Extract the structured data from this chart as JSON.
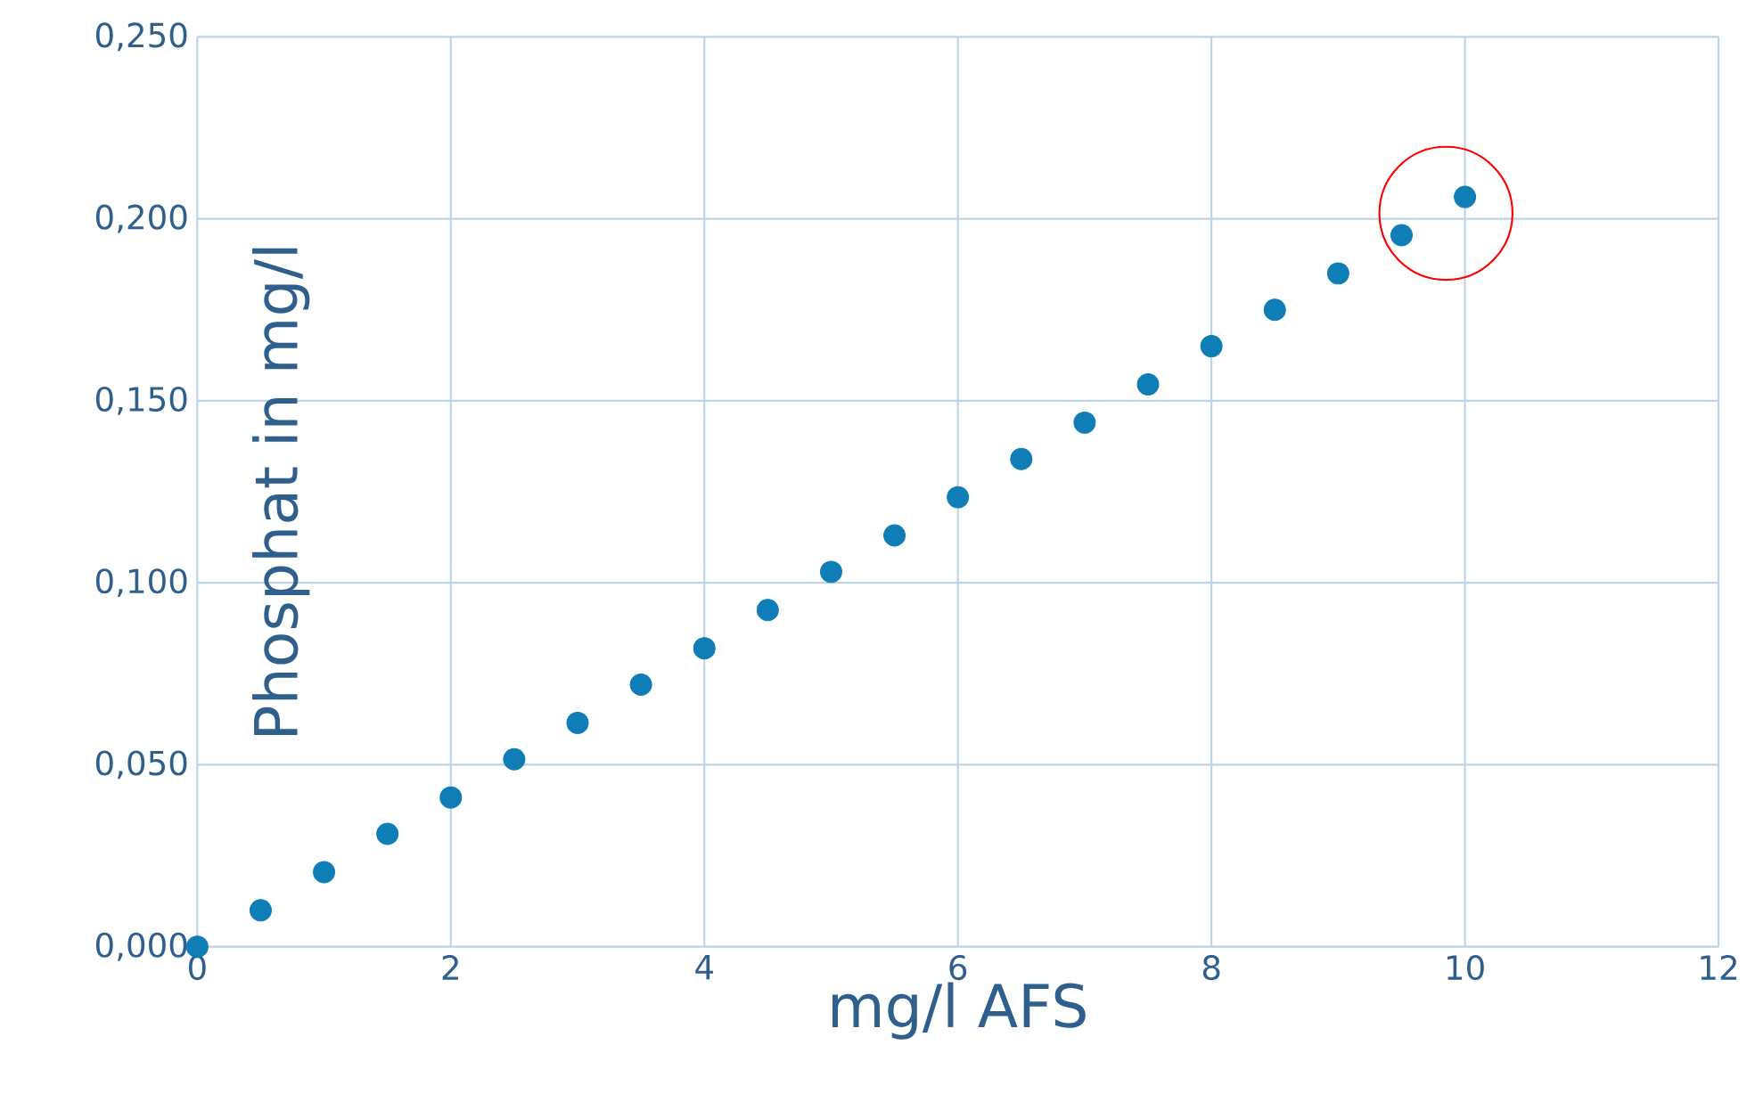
{
  "chart_data": {
    "type": "scatter",
    "xlabel": "mg/l AFS",
    "ylabel": "Phosphat in mg/l",
    "x": [
      0,
      0.5,
      1,
      1.5,
      2,
      2.5,
      3,
      3.5,
      4,
      4.5,
      5,
      5.5,
      6,
      6.5,
      7,
      7.5,
      8,
      8.5,
      9,
      9.5,
      10
    ],
    "values": [
      0,
      0.01,
      0.0205,
      0.031,
      0.041,
      0.0515,
      0.0615,
      0.072,
      0.082,
      0.0925,
      0.103,
      0.113,
      0.1235,
      0.134,
      0.144,
      0.1545,
      0.165,
      0.175,
      0.185,
      0.1955,
      0.206
    ],
    "color": "#0f7db6",
    "marker": "circle",
    "grid": true,
    "xlim": [
      0,
      12
    ],
    "xticks": [
      0,
      2,
      4,
      6,
      8,
      10,
      12
    ],
    "ylim": [
      0,
      0.25
    ],
    "yticks": [
      {
        "value": 0,
        "label": "0,000"
      },
      {
        "value": 0.05,
        "label": "0,050"
      },
      {
        "value": 0.1,
        "label": "0,100"
      },
      {
        "value": 0.15,
        "label": "0,150"
      },
      {
        "value": 0.2,
        "label": "0,200"
      },
      {
        "value": 0.25,
        "label": "0,250"
      }
    ]
  }
}
